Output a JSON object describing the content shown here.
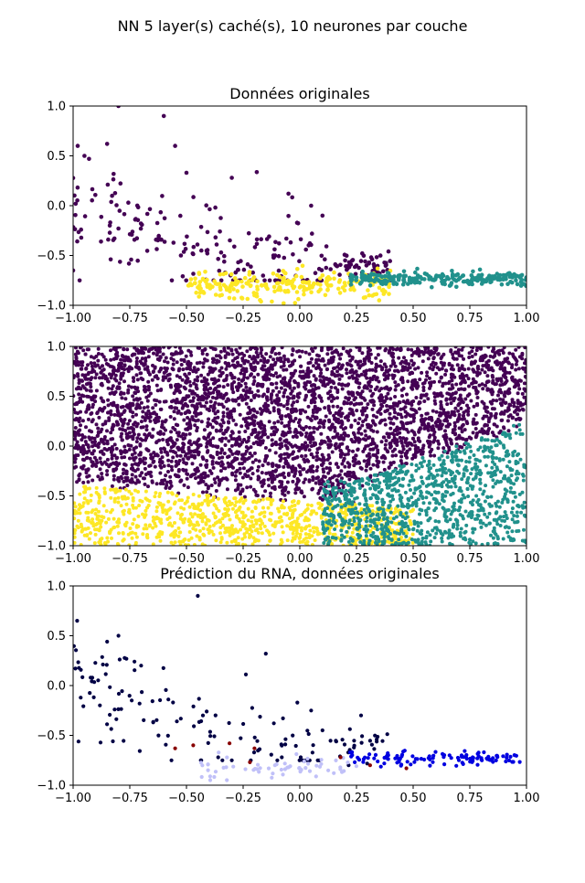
{
  "figure": {
    "suptitle": "NN 5 layer(s) caché(s), 10 neurones par couche"
  },
  "chart_data": [
    {
      "type": "scatter",
      "title": "Données originales",
      "xlim": [
        -1.0,
        1.0
      ],
      "ylim": [
        -1.0,
        1.0
      ],
      "xticks": [
        "−1.00",
        "−0.75",
        "−0.50",
        "−0.25",
        "0.00",
        "0.25",
        "0.50",
        "0.75",
        "1.00"
      ],
      "yticks": [
        "−1.0",
        "−0.5",
        "0.0",
        "0.5",
        "1.0"
      ],
      "grid": false,
      "classes": [
        {
          "color": "#440154",
          "count": 260,
          "region": "upper-left band",
          "sample_points": [
            [
              -0.98,
              0.6
            ],
            [
              -0.95,
              0.5
            ],
            [
              -0.93,
              0.47
            ],
            [
              -0.85,
              0.62
            ],
            [
              -0.8,
              1.0
            ],
            [
              -0.6,
              0.9
            ],
            [
              -0.55,
              0.6
            ],
            [
              -0.5,
              0.33
            ],
            [
              -0.3,
              0.28
            ],
            [
              -0.05,
              0.12
            ],
            [
              0.05,
              0.0
            ],
            [
              0.1,
              -0.1
            ],
            [
              0.2,
              -0.55
            ],
            [
              0.25,
              -0.6
            ],
            [
              0.3,
              -0.7
            ],
            [
              0.4,
              -0.75
            ],
            [
              -1.0,
              -0.65
            ]
          ]
        },
        {
          "color": "#fde725",
          "count": 230,
          "region": "bottom center",
          "sample_points": [
            [
              -0.45,
              -0.82
            ],
            [
              -0.3,
              -0.8
            ],
            [
              -0.2,
              -0.9
            ],
            [
              -0.1,
              -0.78
            ],
            [
              0.0,
              -0.82
            ],
            [
              0.1,
              -0.7
            ],
            [
              0.2,
              -0.8
            ],
            [
              0.3,
              -0.85
            ],
            [
              0.35,
              -0.95
            ]
          ]
        },
        {
          "color": "#21918c",
          "count": 230,
          "region": "bottom right",
          "sample_points": [
            [
              0.25,
              -0.72
            ],
            [
              0.35,
              -0.7
            ],
            [
              0.5,
              -0.75
            ],
            [
              0.6,
              -0.72
            ],
            [
              0.7,
              -0.74
            ],
            [
              0.8,
              -0.72
            ],
            [
              0.9,
              -0.7
            ],
            [
              1.0,
              -0.72
            ]
          ]
        }
      ]
    },
    {
      "type": "scatter",
      "title": "",
      "xlim": [
        -1.0,
        1.0
      ],
      "ylim": [
        -1.0,
        1.0
      ],
      "xticks": [
        "−1.00",
        "−0.75",
        "−0.50",
        "−0.25",
        "0.00",
        "0.25",
        "0.50",
        "0.75",
        "1.00"
      ],
      "yticks": [
        "−1.0",
        "−0.5",
        "0.0",
        "0.5",
        "1.0"
      ],
      "grid": false,
      "classes": [
        {
          "color": "#440154",
          "count": 3800,
          "region": "upper area above decision boundaries"
        },
        {
          "color": "#fde725",
          "count": 900,
          "region": "bottom left, y below about -0.5"
        },
        {
          "color": "#21918c",
          "count": 1000,
          "region": "lower right, x above about 0.2"
        }
      ]
    },
    {
      "type": "scatter",
      "title": "Prédiction du RNA, données originales",
      "xlim": [
        -1.0,
        1.0
      ],
      "ylim": [
        -1.0,
        1.0
      ],
      "xticks": [
        "−1.00",
        "−0.75",
        "−0.50",
        "−0.25",
        "0.00",
        "0.25",
        "0.50",
        "0.75",
        "1.00"
      ],
      "yticks": [
        "−1.0",
        "−0.5",
        "0.0",
        "0.5",
        "1.0"
      ],
      "grid": false,
      "classes": [
        {
          "color": "#000044",
          "count": 150,
          "region": "upper-left band",
          "sample_points": [
            [
              -0.45,
              0.9
            ],
            [
              -0.8,
              0.5
            ],
            [
              -0.85,
              0.44
            ],
            [
              -0.15,
              0.32
            ],
            [
              -0.7,
              0.2
            ],
            [
              0.05,
              -0.25
            ],
            [
              0.27,
              -0.3
            ],
            [
              0.1,
              -0.45
            ]
          ]
        },
        {
          "color": "#c0c0f8",
          "count": 60,
          "region": "bottom center"
        },
        {
          "color": "#0000e0",
          "count": 110,
          "region": "bottom right"
        },
        {
          "color": "#880000",
          "count": 12,
          "region": "scattered misclassified",
          "sample_points": [
            [
              -0.55,
              -0.63
            ],
            [
              -0.47,
              -0.6
            ],
            [
              -0.31,
              -0.58
            ],
            [
              -0.22,
              -0.77
            ],
            [
              -0.2,
              -0.63
            ],
            [
              0.18,
              -0.72
            ],
            [
              0.31,
              -0.8
            ],
            [
              0.47,
              -0.83
            ]
          ]
        }
      ]
    }
  ]
}
